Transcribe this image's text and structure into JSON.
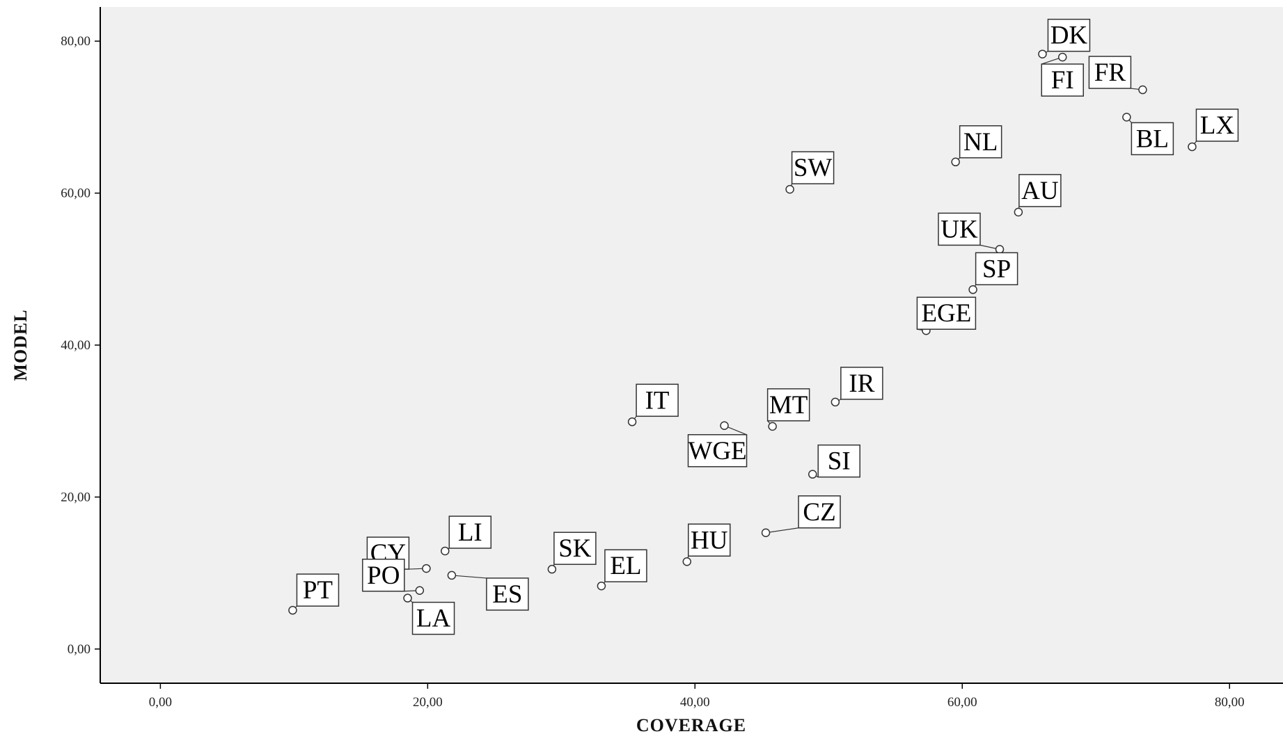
{
  "chart_data": {
    "type": "scatter",
    "xlabel": "COVERAGE",
    "ylabel": "MODEL",
    "xlim": [
      -4.5,
      84
    ],
    "ylim": [
      -4.5,
      84.5
    ],
    "x_ticks": [
      "0,00",
      "20,00",
      "40,00",
      "60,00",
      "80,00"
    ],
    "y_ticks": [
      "0,00",
      "20,00",
      "40,00",
      "60,00",
      "80,00"
    ],
    "grid": false,
    "colors": {
      "plot_background": "#f0f0f0",
      "marker": "#ffffff",
      "marker_edge": "#333333"
    },
    "points": [
      {
        "label": "DK",
        "x": 66.0,
        "y": 78.3
      },
      {
        "label": "FI",
        "x": 67.5,
        "y": 77.9
      },
      {
        "label": "FR",
        "x": 73.5,
        "y": 73.6
      },
      {
        "label": "BL",
        "x": 72.3,
        "y": 70.0
      },
      {
        "label": "LX",
        "x": 77.2,
        "y": 66.1
      },
      {
        "label": "NL",
        "x": 59.5,
        "y": 64.1
      },
      {
        "label": "SW",
        "x": 47.1,
        "y": 60.5
      },
      {
        "label": "AU",
        "x": 64.2,
        "y": 57.5
      },
      {
        "label": "UK",
        "x": 62.8,
        "y": 52.6
      },
      {
        "label": "SP",
        "x": 60.8,
        "y": 47.3
      },
      {
        "label": "EGE",
        "x": 57.3,
        "y": 41.9
      },
      {
        "label": "IR",
        "x": 50.5,
        "y": 32.5
      },
      {
        "label": "IT",
        "x": 35.3,
        "y": 29.9
      },
      {
        "label": "MT",
        "x": 45.8,
        "y": 29.3
      },
      {
        "label": "WGE",
        "x": 42.2,
        "y": 29.4
      },
      {
        "label": "SI",
        "x": 48.8,
        "y": 23.0
      },
      {
        "label": "CZ",
        "x": 45.3,
        "y": 15.3
      },
      {
        "label": "HU",
        "x": 39.4,
        "y": 11.5
      },
      {
        "label": "LI",
        "x": 21.3,
        "y": 12.9
      },
      {
        "label": "CY",
        "x": 19.9,
        "y": 10.6
      },
      {
        "label": "SK",
        "x": 29.3,
        "y": 10.5
      },
      {
        "label": "ES",
        "x": 21.8,
        "y": 9.7
      },
      {
        "label": "EL",
        "x": 33.0,
        "y": 8.3
      },
      {
        "label": "PO",
        "x": 19.4,
        "y": 7.7
      },
      {
        "label": "LA",
        "x": 18.5,
        "y": 6.7
      },
      {
        "label": "PT",
        "x": 9.9,
        "y": 5.1
      }
    ]
  }
}
